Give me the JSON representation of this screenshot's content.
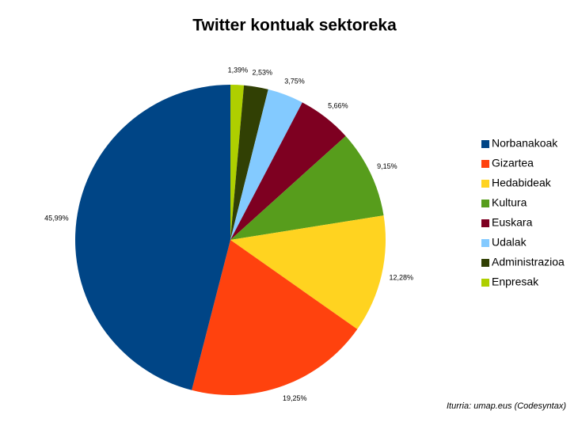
{
  "chart_data": {
    "type": "pie",
    "title": "Twitter kontuak sektoreka",
    "categories": [
      "Norbanakoak",
      "Gizartea",
      "Hedabideak",
      "Kultura",
      "Euskara",
      "Udalak",
      "Administrazioa",
      "Enpresak"
    ],
    "values": [
      45.99,
      19.25,
      12.28,
      9.15,
      5.66,
      3.75,
      2.53,
      1.39
    ],
    "value_labels": [
      "45,99%",
      "19,25%",
      "12,28%",
      "9,15%",
      "5,66%",
      "3,75%",
      "2,53%",
      "1,39%"
    ],
    "colors": [
      "#004586",
      "#ff420e",
      "#ffd320",
      "#579d1c",
      "#7e0021",
      "#83caff",
      "#314004",
      "#aecf00"
    ],
    "legend": "right",
    "source": "Iturria: umap.eus (Codesyntax)"
  }
}
